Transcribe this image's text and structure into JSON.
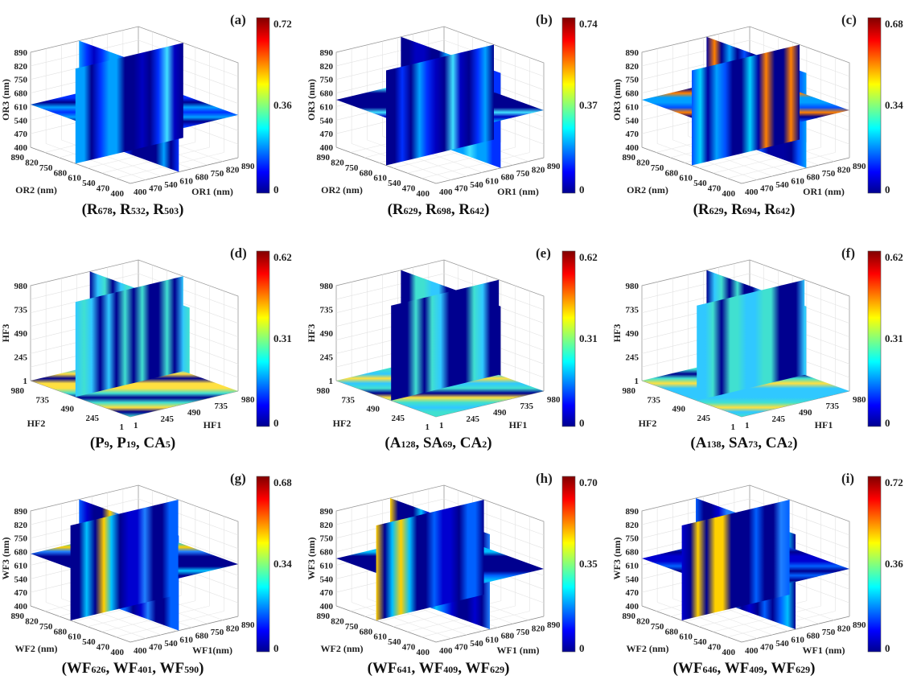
{
  "colors": {
    "jet_low": "#00008f",
    "jet_mid": "#00ffff",
    "jet_high": "#800000"
  },
  "chart_data": [
    {
      "type": "heatmap",
      "panel_label": "(a)",
      "caption": [
        {
          "t": "R",
          "s": "678"
        },
        {
          "t": "R",
          "s": "532"
        },
        {
          "t": "R",
          "s": "503"
        }
      ],
      "xlabel": "OR1 (nm)",
      "ylabel": "OR2 (nm)",
      "zlabel": "OR3 (nm)",
      "x_ticks": [
        "400",
        "470",
        "540",
        "610",
        "680",
        "750",
        "820",
        "890"
      ],
      "y_ticks": [
        "400",
        "470",
        "540",
        "610",
        "680",
        "750",
        "820",
        "890"
      ],
      "z_ticks": [
        "400",
        "470",
        "540",
        "610",
        "680",
        "750",
        "820",
        "890"
      ],
      "colorbar": {
        "min": "0",
        "mid": "0.36",
        "max": "0.72"
      },
      "colormap": "jet"
    },
    {
      "type": "heatmap",
      "panel_label": "(b)",
      "caption": [
        {
          "t": "R",
          "s": "629"
        },
        {
          "t": "R",
          "s": "698"
        },
        {
          "t": "R",
          "s": "642"
        }
      ],
      "xlabel": "OR1 (nm)",
      "ylabel": "OR2 (nm)",
      "zlabel": "OR3 (nm)",
      "x_ticks": [
        "400",
        "470",
        "540",
        "610",
        "680",
        "750",
        "820",
        "890"
      ],
      "y_ticks": [
        "400",
        "470",
        "540",
        "610",
        "680",
        "750",
        "820",
        "890"
      ],
      "z_ticks": [
        "400",
        "470",
        "540",
        "610",
        "680",
        "750",
        "820",
        "890"
      ],
      "colorbar": {
        "min": "0",
        "mid": "0.37",
        "max": "0.74"
      },
      "colormap": "jet"
    },
    {
      "type": "heatmap",
      "panel_label": "(c)",
      "caption": [
        {
          "t": "R",
          "s": "629"
        },
        {
          "t": "R",
          "s": "694"
        },
        {
          "t": "R",
          "s": "642"
        }
      ],
      "xlabel": "OR1 (nm)",
      "ylabel": "OR2 (nm)",
      "zlabel": "OR3 (nm)",
      "x_ticks": [
        "400",
        "470",
        "540",
        "610",
        "680",
        "750",
        "820",
        "890"
      ],
      "y_ticks": [
        "400",
        "470",
        "540",
        "610",
        "680",
        "750",
        "820",
        "890"
      ],
      "z_ticks": [
        "400",
        "470",
        "540",
        "610",
        "680",
        "750",
        "820",
        "890"
      ],
      "colorbar": {
        "min": "0",
        "mid": "0.34",
        "max": "0.68"
      },
      "colormap": "jet"
    },
    {
      "type": "heatmap",
      "panel_label": "(d)",
      "caption": [
        {
          "t": "P",
          "s": "9"
        },
        {
          "t": "P",
          "s": "19"
        },
        {
          "t": "CA",
          "s": "5"
        }
      ],
      "xlabel": "HF1",
      "ylabel": "HF2",
      "zlabel": "HF3",
      "x_ticks": [
        "1",
        "245",
        "490",
        "735",
        "980"
      ],
      "y_ticks": [
        "1",
        "245",
        "490",
        "735",
        "980"
      ],
      "z_ticks": [
        "1",
        "245",
        "490",
        "735",
        "980"
      ],
      "colorbar": {
        "min": "0",
        "mid": "0.31",
        "max": "0.62"
      },
      "colormap": "jet"
    },
    {
      "type": "heatmap",
      "panel_label": "(e)",
      "caption": [
        {
          "t": "A",
          "s": "128"
        },
        {
          "t": "SA",
          "s": "69"
        },
        {
          "t": "CA",
          "s": "2"
        }
      ],
      "xlabel": "HF1",
      "ylabel": "HF2",
      "zlabel": "HF3",
      "x_ticks": [
        "1",
        "245",
        "490",
        "735",
        "980"
      ],
      "y_ticks": [
        "1",
        "245",
        "490",
        "735",
        "980"
      ],
      "z_ticks": [
        "1",
        "245",
        "490",
        "735",
        "980"
      ],
      "colorbar": {
        "min": "0",
        "mid": "0.31",
        "max": "0.62"
      },
      "colormap": "jet"
    },
    {
      "type": "heatmap",
      "panel_label": "(f)",
      "caption": [
        {
          "t": "A",
          "s": "138"
        },
        {
          "t": "SA",
          "s": "73"
        },
        {
          "t": "CA",
          "s": "2"
        }
      ],
      "xlabel": "HF1",
      "ylabel": "HF2",
      "zlabel": "HF3",
      "x_ticks": [
        "1",
        "245",
        "490",
        "735",
        "980"
      ],
      "y_ticks": [
        "1",
        "245",
        "490",
        "735",
        "980"
      ],
      "z_ticks": [
        "1",
        "245",
        "490",
        "735",
        "980"
      ],
      "colorbar": {
        "min": "0",
        "mid": "0.31",
        "max": "0.62"
      },
      "colormap": "jet"
    },
    {
      "type": "heatmap",
      "panel_label": "(g)",
      "caption": [
        {
          "t": "WF",
          "s": "626"
        },
        {
          "t": "WF",
          "s": "401"
        },
        {
          "t": "WF",
          "s": "590"
        }
      ],
      "xlabel": "WF1(nm)",
      "ylabel": "WF2 (nm)",
      "zlabel": "WF3 (nm)",
      "x_ticks": [
        "400",
        "470",
        "540",
        "610",
        "680",
        "750",
        "820",
        "890"
      ],
      "y_ticks": [
        "400",
        "470",
        "540",
        "610",
        "680",
        "750",
        "820",
        "890"
      ],
      "z_ticks": [
        "400",
        "470",
        "540",
        "610",
        "680",
        "750",
        "820",
        "890"
      ],
      "colorbar": {
        "min": "0",
        "mid": "0.34",
        "max": "0.68"
      },
      "colormap": "jet"
    },
    {
      "type": "heatmap",
      "panel_label": "(h)",
      "caption": [
        {
          "t": "WF",
          "s": "641"
        },
        {
          "t": "WF",
          "s": "409"
        },
        {
          "t": "WF",
          "s": "629"
        }
      ],
      "xlabel": "WF1 (nm)",
      "ylabel": "WF2 (nm)",
      "zlabel": "WF3 (nm)",
      "x_ticks": [
        "400",
        "470",
        "540",
        "610",
        "680",
        "750",
        "820",
        "890"
      ],
      "y_ticks": [
        "400",
        "470",
        "540",
        "610",
        "680",
        "750",
        "820",
        "890"
      ],
      "z_ticks": [
        "400",
        "470",
        "540",
        "610",
        "680",
        "750",
        "820",
        "890"
      ],
      "colorbar": {
        "min": "0",
        "mid": "0.35",
        "max": "0.70"
      },
      "colormap": "jet"
    },
    {
      "type": "heatmap",
      "panel_label": "(i)",
      "caption": [
        {
          "t": "WF",
          "s": "646"
        },
        {
          "t": "WF",
          "s": "409"
        },
        {
          "t": "WF",
          "s": "629"
        }
      ],
      "xlabel": "WF1 (nm)",
      "ylabel": "WF2 (nm)",
      "zlabel": "WF3 (nm)",
      "x_ticks": [
        "400",
        "470",
        "540",
        "610",
        "680",
        "750",
        "820",
        "890"
      ],
      "y_ticks": [
        "400",
        "470",
        "540",
        "610",
        "680",
        "750",
        "820",
        "890"
      ],
      "z_ticks": [
        "400",
        "470",
        "540",
        "610",
        "680",
        "750",
        "820",
        "890"
      ],
      "colorbar": {
        "min": "0",
        "mid": "0.36",
        "max": "0.72"
      },
      "colormap": "jet"
    }
  ]
}
